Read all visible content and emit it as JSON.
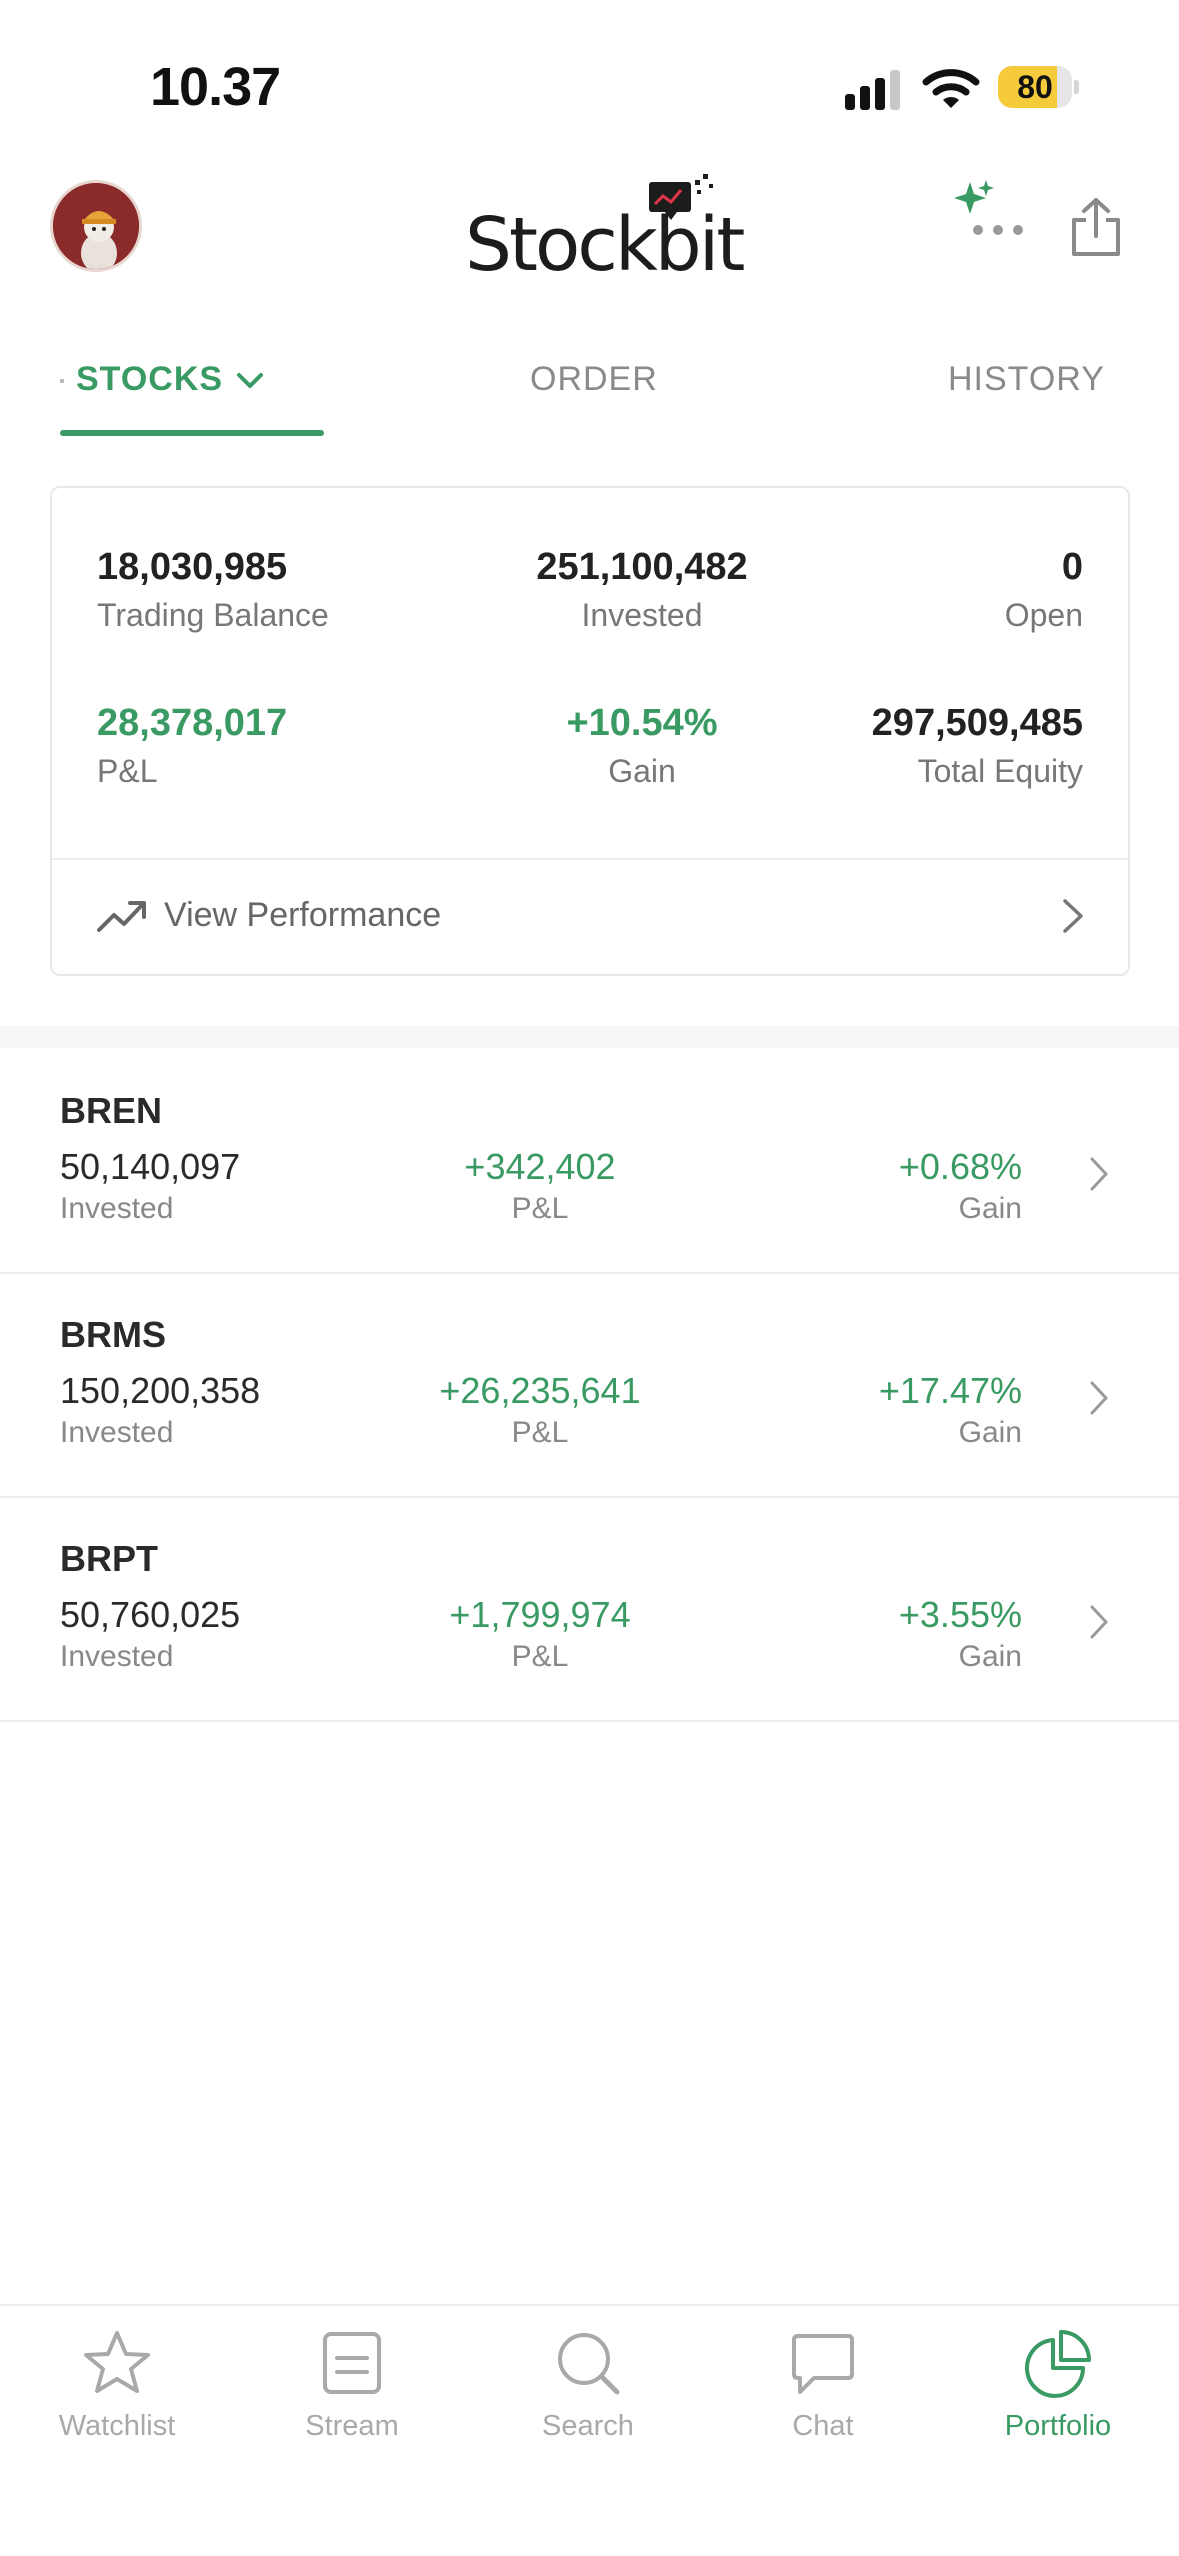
{
  "status_bar": {
    "time": "10.37",
    "battery": "80",
    "battery_level": 0.8
  },
  "header": {
    "logo_text": "Stockbit",
    "icons": [
      "avatar",
      "sparkle-icon",
      "share-icon"
    ]
  },
  "tabs": [
    {
      "label": "STOCKS",
      "active": true,
      "has_dropdown": true
    },
    {
      "label": "ORDER",
      "active": false
    },
    {
      "label": "HISTORY",
      "active": false
    }
  ],
  "summary": {
    "trading_balance": {
      "value": "18,030,985",
      "label": "Trading Balance"
    },
    "invested": {
      "value": "251,100,482",
      "label": "Invested"
    },
    "open": {
      "value": "0",
      "label": "Open"
    },
    "pnl": {
      "value": "28,378,017",
      "label": "P&L"
    },
    "gain": {
      "value": "+10.54%",
      "label": "Gain"
    },
    "total_equity": {
      "value": "297,509,485",
      "label": "Total Equity"
    },
    "view_performance": "View Performance"
  },
  "holdings": [
    {
      "ticker": "BREN",
      "invested": "50,140,097",
      "invested_label": "Invested",
      "pnl": "+342,402",
      "pnl_label": "P&L",
      "gain": "+0.68%",
      "gain_label": "Gain"
    },
    {
      "ticker": "BRMS",
      "invested": "150,200,358",
      "invested_label": "Invested",
      "pnl": "+26,235,641",
      "pnl_label": "P&L",
      "gain": "+17.47%",
      "gain_label": "Gain"
    },
    {
      "ticker": "BRPT",
      "invested": "50,760,025",
      "invested_label": "Invested",
      "pnl": "+1,799,974",
      "pnl_label": "P&L",
      "gain": "+3.55%",
      "gain_label": "Gain"
    }
  ],
  "bottom_nav": [
    {
      "label": "Watchlist",
      "icon": "star-icon",
      "active": false
    },
    {
      "label": "Stream",
      "icon": "stream-icon",
      "active": false
    },
    {
      "label": "Search",
      "icon": "search-icon",
      "active": false
    },
    {
      "label": "Chat",
      "icon": "chat-icon",
      "active": false
    },
    {
      "label": "Portfolio",
      "icon": "pie-chart-icon",
      "active": true
    }
  ],
  "colors": {
    "accent_green": "#3a9a63",
    "battery": "#f5cb3c",
    "text_muted": "#888888"
  }
}
